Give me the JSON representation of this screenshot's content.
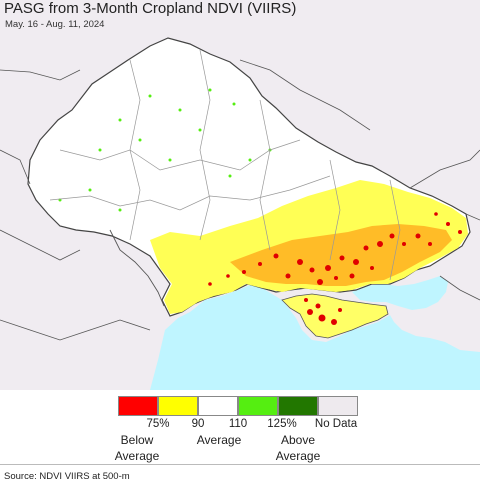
{
  "header": {
    "title": "PASG from 3-Month Cropland NDVI (VIIRS)",
    "subtitle": "May. 16 - Aug. 11, 2024"
  },
  "legend": {
    "colors": [
      "#ff0000",
      "#ffff00",
      "#ffffff",
      "#55ee11",
      "#227700",
      "#eeeaee"
    ],
    "ticks": [
      "75%",
      "90",
      "110",
      "125%",
      "No Data"
    ],
    "category_labels": [
      "Below\nAverage",
      "Average",
      "Above\nAverage"
    ]
  },
  "footer": {
    "source": "Source: NDVI VIIRS at 500-m"
  },
  "colors": {
    "land_nodata": "#f0ecf1",
    "sea": "#bff5ff",
    "border": "#555555",
    "oblast_border": "#999999"
  }
}
